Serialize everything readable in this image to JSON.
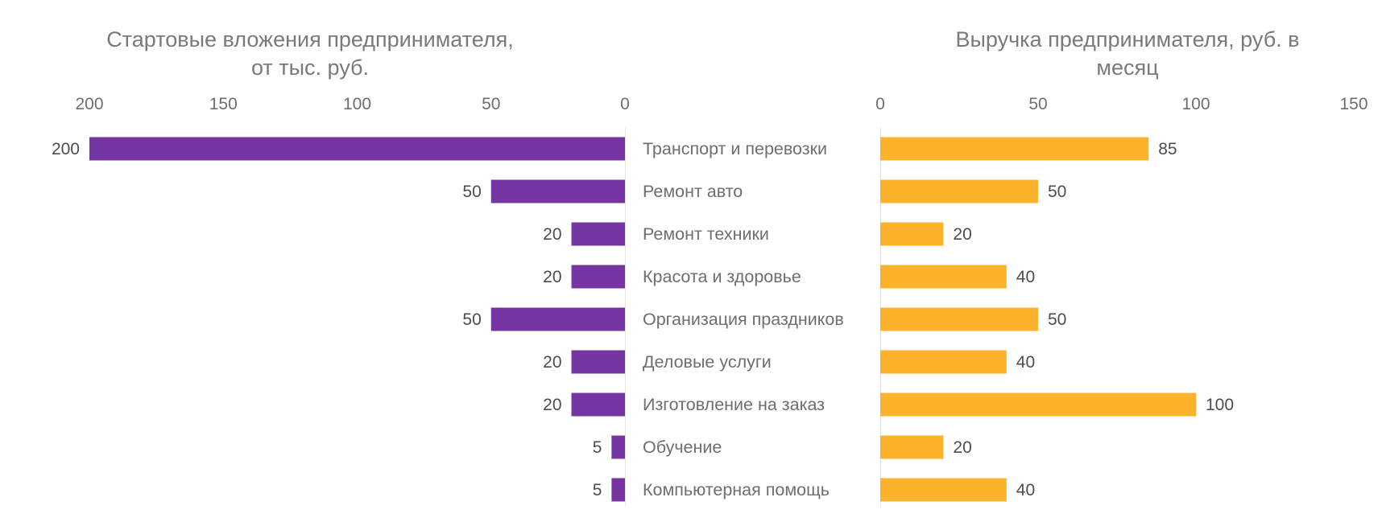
{
  "chart_data": [
    {
      "type": "bar",
      "orientation": "horizontal",
      "direction": "reversed",
      "title": "Стартовые вложения предпринимателя, от тыс. руб.",
      "title_lines": [
        "Стартовые вложения предпринимателя,",
        "от тыс. руб."
      ],
      "xlim": [
        0,
        200
      ],
      "ticks": [
        "200",
        "150",
        "100",
        "50",
        "0"
      ],
      "categories": [
        "Транспорт и перевозки",
        "Ремонт  авто",
        "Ремонт техники",
        "Красота и здоровье",
        "Организация праздников",
        "Деловые услуги",
        "Изготовление на заказ",
        "Обучение",
        "Компьютерная помощь"
      ],
      "values": [
        200,
        50,
        20,
        20,
        50,
        20,
        20,
        5,
        5
      ],
      "color": "#7535A3",
      "grid": false
    },
    {
      "type": "bar",
      "orientation": "horizontal",
      "title": "Выручка предпринимателя, руб. в месяц",
      "title_lines": [
        "Выручка предпринимателя, руб. в",
        "месяц"
      ],
      "xlim": [
        0,
        150
      ],
      "ticks": [
        "0",
        "50",
        "100",
        "150"
      ],
      "categories": [
        "Транспорт и перевозки",
        "Ремонт  авто",
        "Ремонт техники",
        "Красота и здоровье",
        "Организация праздников",
        "Деловые услуги",
        "Изготовление на заказ",
        "Обучение",
        "Компьютерная помощь"
      ],
      "values": [
        85,
        50,
        20,
        40,
        50,
        40,
        100,
        20,
        40
      ],
      "color": "#FDB22B",
      "grid": false
    }
  ]
}
